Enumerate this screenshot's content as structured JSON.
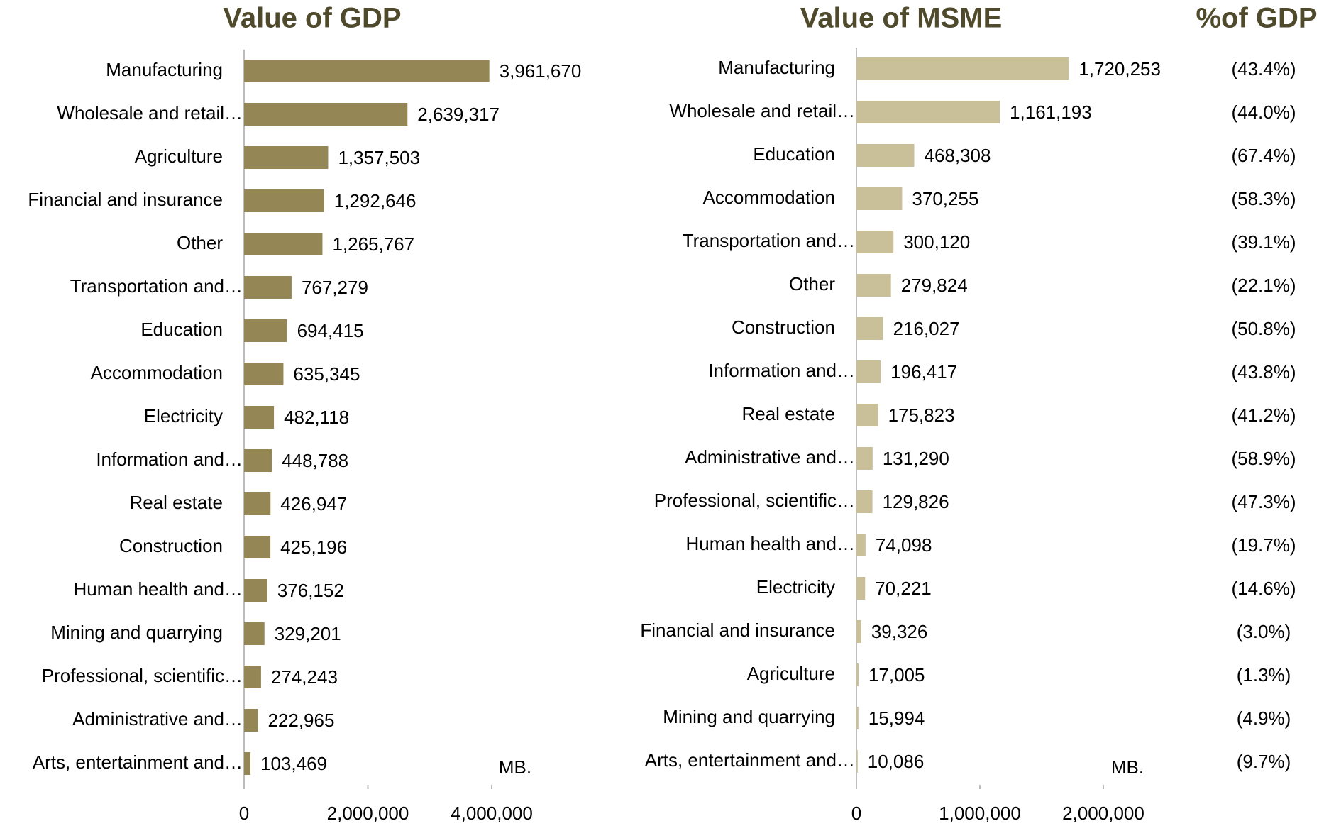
{
  "chart_data": [
    {
      "type": "bar",
      "orientation": "horizontal",
      "title": "Value of GDP",
      "unit": "MB.",
      "color": "#958755",
      "categories": [
        "Manufacturing",
        "Wholesale and retail…",
        "Agriculture",
        "Financial and insurance",
        "Other",
        "Transportation and…",
        "Education",
        "Accommodation",
        "Electricity",
        "Information and…",
        "Real estate",
        "Construction",
        "Human health and…",
        "Mining and quarrying",
        "Professional, scientific…",
        "Administrative and…",
        "Arts, entertainment and…"
      ],
      "values": [
        3961670,
        2639317,
        1357503,
        1292646,
        1265767,
        767279,
        694415,
        635345,
        482118,
        448788,
        426947,
        425196,
        376152,
        329201,
        274243,
        222965,
        103469
      ],
      "value_labels": [
        "3,961,670",
        "2,639,317",
        "1,357,503",
        "1,292,646",
        "1,265,767",
        "767,279",
        "694,415",
        "635,345",
        "482,118",
        "448,788",
        "426,947",
        "425,196",
        "376,152",
        "329,201",
        "274,243",
        "222,965",
        "103,469"
      ],
      "xlim": [
        0,
        4000000
      ],
      "xticks": [
        0,
        {
          "value": 2000000,
          "label": "2,000,000"
        },
        {
          "value": 4000000,
          "label": "4,000,000"
        }
      ]
    },
    {
      "type": "bar",
      "orientation": "horizontal",
      "title": "Value of  MSME",
      "unit": "MB.",
      "color": "#c9bf99",
      "categories": [
        "Manufacturing",
        "Wholesale and retail…",
        "Education",
        "Accommodation",
        "Transportation and…",
        "Other",
        "Construction",
        "Information and…",
        "Real estate",
        "Administrative and…",
        "Professional, scientific…",
        "Human health and…",
        "Electricity",
        "Financial and insurance",
        "Agriculture",
        "Mining and quarrying",
        "Arts, entertainment and…"
      ],
      "values": [
        1720253,
        1161193,
        468308,
        370255,
        300120,
        279824,
        216027,
        196417,
        175823,
        131290,
        129826,
        74098,
        70221,
        39326,
        17005,
        15994,
        10086
      ],
      "value_labels": [
        "1,720,253",
        "1,161,193",
        "468,308",
        "370,255",
        "300,120",
        "279,824",
        "216,027",
        "196,417",
        "175,823",
        "131,290",
        "129,826",
        "74,098",
        "70,221",
        "39,326",
        "17,005",
        "15,994",
        "10,086"
      ],
      "xlim": [
        0,
        2000000
      ],
      "xticks": [
        0,
        {
          "value": 1000000,
          "label": "1,000,000"
        },
        {
          "value": 2000000,
          "label": "2,000,000"
        }
      ],
      "percent_title": "%of GDP",
      "percent_labels": [
        "(43.4%)",
        "(44.0%)",
        "(67.4%)",
        "(58.3%)",
        "(39.1%)",
        "(22.1%)",
        "(50.8%)",
        "(43.8%)",
        "(41.2%)",
        "(58.9%)",
        "(47.3%)",
        "(19.7%)",
        "(14.6%)",
        "(3.0%)",
        "(1.3%)",
        "(4.9%)",
        "(9.7%)"
      ]
    }
  ]
}
